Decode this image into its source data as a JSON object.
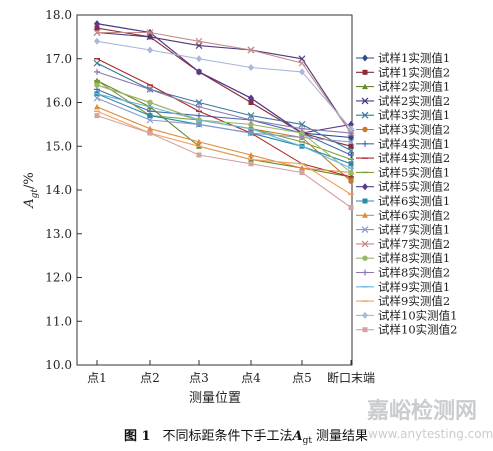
{
  "chart_data": {
    "type": "line",
    "categories": [
      "点1",
      "点2",
      "点3",
      "点4",
      "点5",
      "断口末端"
    ],
    "ylim": [
      10.0,
      18.0
    ],
    "yticks": [
      "10.0",
      "11.0",
      "12.0",
      "13.0",
      "14.0",
      "15.0",
      "16.0",
      "17.0",
      "18.0"
    ],
    "ylabel": "A",
    "ylabel_sub": "gt",
    "ylabel_unit": "/%",
    "xlabel": "测量位置",
    "grid": false,
    "legend_position": "right",
    "series": [
      {
        "name": "试样1实测值1",
        "color": "#2d4a8a",
        "marker": "diamond",
        "values": [
          17.8,
          17.6,
          16.7,
          16.1,
          15.3,
          15.2
        ]
      },
      {
        "name": "试样1实测值2",
        "color": "#8b2a3a",
        "marker": "square",
        "values": [
          17.7,
          17.5,
          16.7,
          16.0,
          15.3,
          15.0
        ]
      },
      {
        "name": "试样2实测值1",
        "color": "#6a8a2a",
        "marker": "triangle",
        "values": [
          16.5,
          15.9,
          15.0,
          14.7,
          14.5,
          14.3
        ]
      },
      {
        "name": "试样2实测值2",
        "color": "#4a3a7a",
        "marker": "x",
        "values": [
          17.6,
          17.5,
          17.3,
          17.2,
          17.0,
          15.3
        ]
      },
      {
        "name": "试样3实测值1",
        "color": "#3a7a9a",
        "marker": "x",
        "values": [
          16.9,
          16.3,
          16.0,
          15.7,
          15.5,
          14.9
        ]
      },
      {
        "name": "试样3实测值2",
        "color": "#c8782a",
        "marker": "circle",
        "values": [
          16.4,
          16.0,
          15.6,
          15.4,
          15.2,
          14.2
        ]
      },
      {
        "name": "试样4实测值1",
        "color": "#4a6ab0",
        "marker": "plus",
        "values": [
          16.3,
          15.8,
          15.7,
          15.6,
          15.3,
          14.8
        ]
      },
      {
        "name": "试样4实测值2",
        "color": "#b02a2a",
        "marker": "dash",
        "values": [
          17.0,
          16.4,
          15.8,
          15.3,
          14.6,
          14.3
        ]
      },
      {
        "name": "试样5实测值1",
        "color": "#7aa03a",
        "marker": "dash",
        "values": [
          16.5,
          15.7,
          15.6,
          15.4,
          15.1,
          14.7
        ]
      },
      {
        "name": "试样5实测值2",
        "color": "#5a3a8a",
        "marker": "diamond",
        "values": [
          17.8,
          17.6,
          16.7,
          16.1,
          15.3,
          15.5
        ]
      },
      {
        "name": "试样6实测值1",
        "color": "#2a8aa8",
        "marker": "square",
        "values": [
          16.2,
          15.7,
          15.5,
          15.3,
          15.0,
          14.6
        ]
      },
      {
        "name": "试样6实测值2",
        "color": "#e08a3a",
        "marker": "triangle",
        "values": [
          15.9,
          15.4,
          15.1,
          14.8,
          14.5,
          14.4
        ]
      },
      {
        "name": "试样7实测值1",
        "color": "#8a9ac8",
        "marker": "x",
        "values": [
          16.1,
          15.6,
          15.5,
          15.3,
          15.2,
          15.1
        ]
      },
      {
        "name": "试样7实测值2",
        "color": "#c88a8a",
        "marker": "x",
        "values": [
          17.6,
          17.6,
          17.4,
          17.2,
          16.9,
          15.3
        ]
      },
      {
        "name": "试样8实测值1",
        "color": "#9ab86a",
        "marker": "circle",
        "values": [
          16.4,
          16.0,
          15.6,
          15.5,
          15.3,
          14.4
        ]
      },
      {
        "name": "试样8实测值2",
        "color": "#8a7ab0",
        "marker": "plus",
        "values": [
          16.7,
          16.3,
          15.9,
          15.6,
          15.4,
          15.3
        ]
      },
      {
        "name": "试样9实测值1",
        "color": "#6ab8d8",
        "marker": "dash",
        "values": [
          16.2,
          15.9,
          15.6,
          15.4,
          15.0,
          14.5
        ]
      },
      {
        "name": "试样9实测值2",
        "color": "#f0a060",
        "marker": "dash",
        "values": [
          15.8,
          15.3,
          15.0,
          14.7,
          14.6,
          13.9
        ]
      },
      {
        "name": "试样10实测值1",
        "color": "#a8b8d8",
        "marker": "diamond",
        "values": [
          17.4,
          17.2,
          17.0,
          16.8,
          16.7,
          15.4
        ]
      },
      {
        "name": "试样10实测值2",
        "color": "#d8a0a0",
        "marker": "square",
        "values": [
          15.7,
          15.3,
          14.8,
          14.6,
          14.4,
          13.6
        ]
      }
    ]
  },
  "caption": {
    "figure_label": "图 1",
    "text": "不同标距条件下手工法",
    "symbol": "A",
    "symbol_sub": "gt",
    "suffix": "测量结果"
  },
  "watermark": {
    "cn": "嘉峪检测网",
    "en": "www.anytesting.com"
  }
}
